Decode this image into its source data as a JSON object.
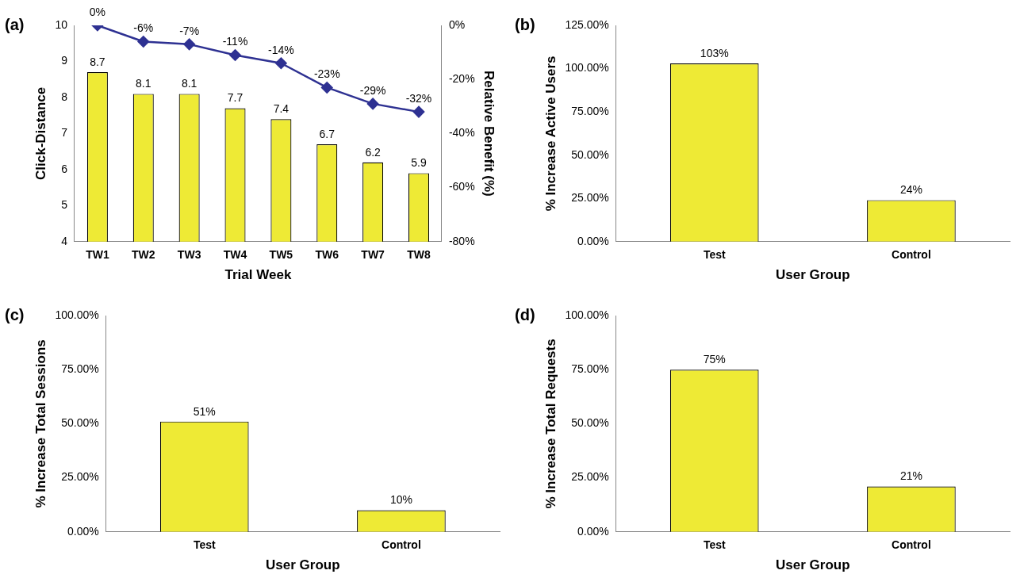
{
  "chart_data": [
    {
      "type": "bar",
      "title": "(a)",
      "xlabel": "Trial Week",
      "ylabel": "Click-Distance",
      "y2label": "Relative Benefit (%)",
      "categories": [
        "TW1",
        "TW2",
        "TW3",
        "TW4",
        "TW5",
        "TW6",
        "TW7",
        "TW8"
      ],
      "series": [
        {
          "color": "#eeea35",
          "values": [
            8.7,
            8.1,
            8.1,
            7.7,
            7.4,
            6.7,
            6.2,
            5.9
          ],
          "value_labels": [
            "8.7",
            "8.1",
            "8.1",
            "7.7",
            "7.4",
            "6.7",
            "6.2",
            "5.9"
          ]
        },
        {
          "type": "line",
          "axis": "y2",
          "color": "#2e3192",
          "marker": "diamond",
          "values": [
            0,
            -6,
            -7,
            -11,
            -14,
            -23,
            -29,
            -32
          ],
          "value_labels": [
            "0%",
            "-6%",
            "-7%",
            "-11%",
            "-14%",
            "-23%",
            "-29%",
            "-32%"
          ]
        }
      ],
      "ylim": [
        4,
        10
      ],
      "yticks": [
        4,
        5,
        6,
        7,
        8,
        9,
        10
      ],
      "y2lim": [
        -80,
        0
      ],
      "y2ticks": [
        {
          "value": -80,
          "label": "-80%"
        },
        {
          "value": -60,
          "label": "-60%"
        },
        {
          "value": -40,
          "label": "-40%"
        },
        {
          "value": -20,
          "label": "-20%"
        },
        {
          "value": 0,
          "label": "0%"
        }
      ],
      "grid": false,
      "legend": false
    },
    {
      "type": "bar",
      "title": "(b)",
      "xlabel": "User Group",
      "ylabel": "% Increase Active Users",
      "categories": [
        "Test",
        "Control"
      ],
      "series": [
        {
          "color": "#eeea35",
          "values": [
            103,
            24
          ],
          "value_labels": [
            "103%",
            "24%"
          ]
        }
      ],
      "ylim": [
        0,
        125
      ],
      "yticks": [
        {
          "value": 0,
          "label": "0.00%"
        },
        {
          "value": 25,
          "label": "25.00%"
        },
        {
          "value": 50,
          "label": "50.00%"
        },
        {
          "value": 75,
          "label": "75.00%"
        },
        {
          "value": 100,
          "label": "100.00%"
        },
        {
          "value": 125,
          "label": "125.00%"
        }
      ],
      "grid": false,
      "legend": false
    },
    {
      "type": "bar",
      "title": "(c)",
      "xlabel": "User Group",
      "ylabel": "% Increase Total Sessions",
      "categories": [
        "Test",
        "Control"
      ],
      "series": [
        {
          "color": "#eeea35",
          "values": [
            51,
            10
          ],
          "value_labels": [
            "51%",
            "10%"
          ]
        }
      ],
      "ylim": [
        0,
        100
      ],
      "yticks": [
        {
          "value": 0,
          "label": "0.00%"
        },
        {
          "value": 25,
          "label": "25.00%"
        },
        {
          "value": 50,
          "label": "50.00%"
        },
        {
          "value": 75,
          "label": "75.00%"
        },
        {
          "value": 100,
          "label": "100.00%"
        }
      ],
      "grid": false,
      "legend": false
    },
    {
      "type": "bar",
      "title": "(d)",
      "xlabel": "User Group",
      "ylabel": "% Increase Total Requests",
      "categories": [
        "Test",
        "Control"
      ],
      "series": [
        {
          "color": "#eeea35",
          "values": [
            75,
            21
          ],
          "value_labels": [
            "75%",
            "21%"
          ]
        }
      ],
      "ylim": [
        0,
        100
      ],
      "yticks": [
        {
          "value": 0,
          "label": "0.00%"
        },
        {
          "value": 25,
          "label": "25.00%"
        },
        {
          "value": 50,
          "label": "50.00%"
        },
        {
          "value": 75,
          "label": "75.00%"
        },
        {
          "value": 100,
          "label": "100.00%"
        }
      ],
      "grid": false,
      "legend": false
    }
  ]
}
